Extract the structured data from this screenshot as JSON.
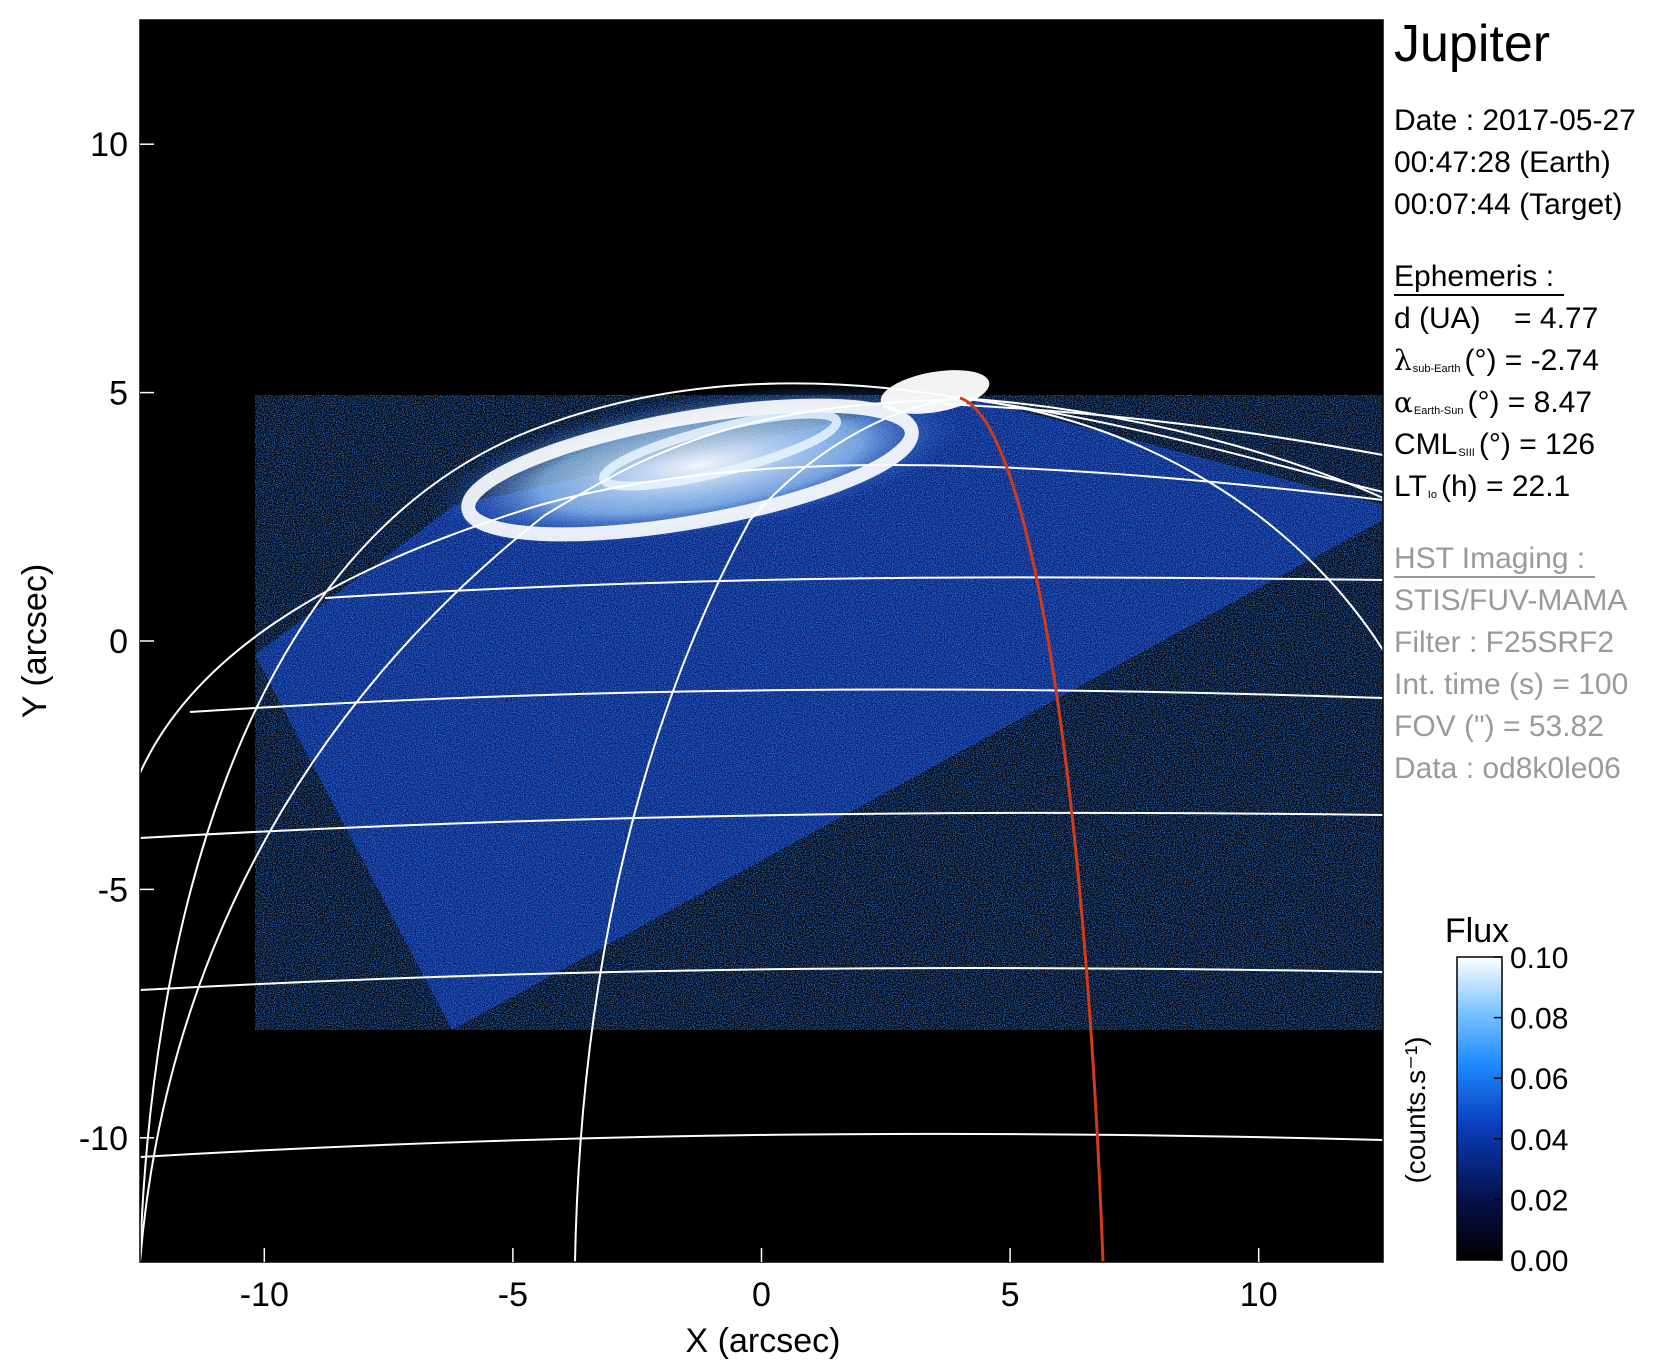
{
  "figure": {
    "target": "Jupiter",
    "observation": {
      "date_line": "Date : 2017-05-27",
      "earth_time_line": "00:47:28 (Earth)",
      "target_time_line": "00:07:44 (Target)"
    },
    "ephemeris": {
      "heading": "Ephemeris :",
      "distance": {
        "label": "d (UA)",
        "value_text": "= 4.77"
      },
      "sub_earth_lat": {
        "symbol": "λ",
        "subscript": "sub-Earth",
        "unit": "(°)",
        "value_text": "= -2.74"
      },
      "phase_angle": {
        "symbol": "α",
        "subscript": "Earth-Sun",
        "unit": "(°)",
        "value_text": "= 8.47"
      },
      "cml": {
        "symbol": "CML",
        "subscript": "SIII",
        "unit": "(°)",
        "value_text": "= 126"
      },
      "lt_io": {
        "symbol": "LT",
        "subscript": "Io",
        "unit": "(h)",
        "value_text": "= 22.1"
      }
    },
    "imaging": {
      "heading": "HST Imaging :",
      "instrument": "STIS/FUV-MAMA",
      "filter": "Filter : F25SRF2",
      "int_time": "Int. time (s) = 100",
      "fov": "FOV (\") = 53.82",
      "data": "Data : od8k0le06"
    },
    "axes": {
      "xlabel": "X (arcsec)",
      "ylabel": "Y (arcsec)",
      "xlim": [
        -12.5,
        12.5
      ],
      "ylim": [
        -12.5,
        12.5
      ],
      "xticks": [
        -10,
        -5,
        0,
        5,
        10
      ],
      "yticks": [
        -10,
        -5,
        0,
        5,
        10
      ],
      "xtick_labels": [
        "-10",
        "-5",
        "0",
        "5",
        "10"
      ],
      "ytick_labels": [
        "-10",
        "-5",
        "0",
        "5",
        "10"
      ]
    },
    "colorbar": {
      "title": "Flux",
      "unit_label": "(counts.s⁻¹)",
      "range": [
        0.0,
        0.1
      ],
      "tick_values": [
        0.1,
        0.08,
        0.06,
        0.04,
        0.02,
        0.0
      ],
      "tick_labels": [
        "0.10",
        "0.08",
        "0.06",
        "0.04",
        "0.02",
        "0.00"
      ]
    },
    "colors": {
      "background": "#000000",
      "grid": "#ffffff",
      "io_footprint_line": "#d23a1a",
      "emission_high": "#ffffff",
      "emission_mid": "#1f8fff",
      "emission_low": "#0a1a6a"
    }
  }
}
